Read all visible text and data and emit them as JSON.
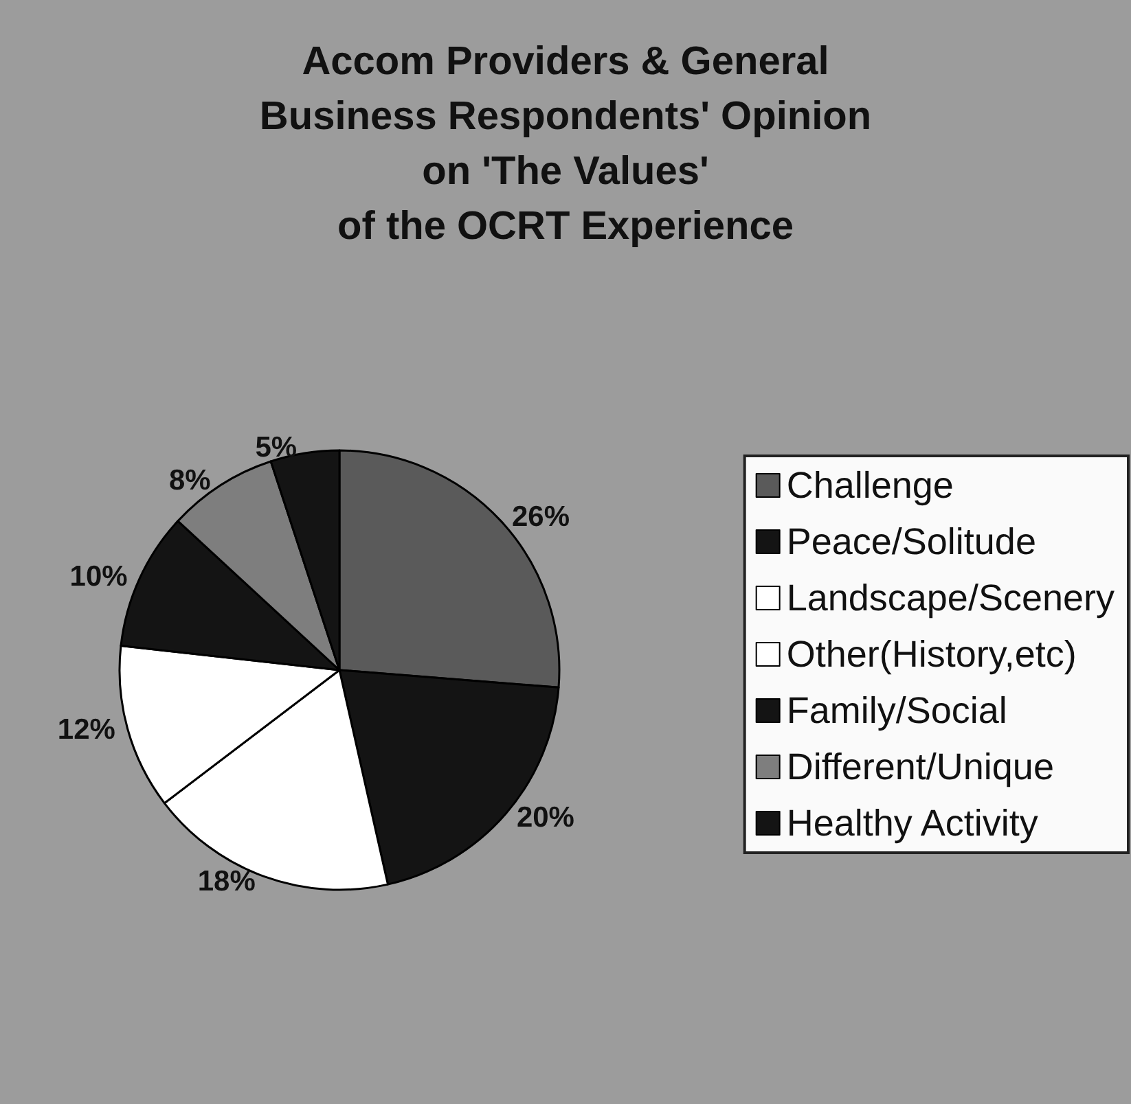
{
  "chart_data": {
    "type": "pie",
    "title": "Accom Providers & General\nBusiness Respondents' Opinion\non 'The Values'\nof the OCRT Experience",
    "categories": [
      "Challenge",
      "Peace/Solitude",
      "Landscape/Scenery",
      "Other(History,etc)",
      "Family/Social",
      "Different/Unique",
      "Healthy Activity"
    ],
    "values": [
      26,
      20,
      18,
      12,
      10,
      8,
      5
    ],
    "colors": [
      "#5a5a5a",
      "#141414",
      "#ffffff",
      "#ffffff",
      "#141414",
      "#7e7e7e",
      "#141414"
    ],
    "value_labels": [
      "26%",
      "20%",
      "18%",
      "12%",
      "10%",
      "8%",
      "5%"
    ],
    "legend": "right"
  }
}
